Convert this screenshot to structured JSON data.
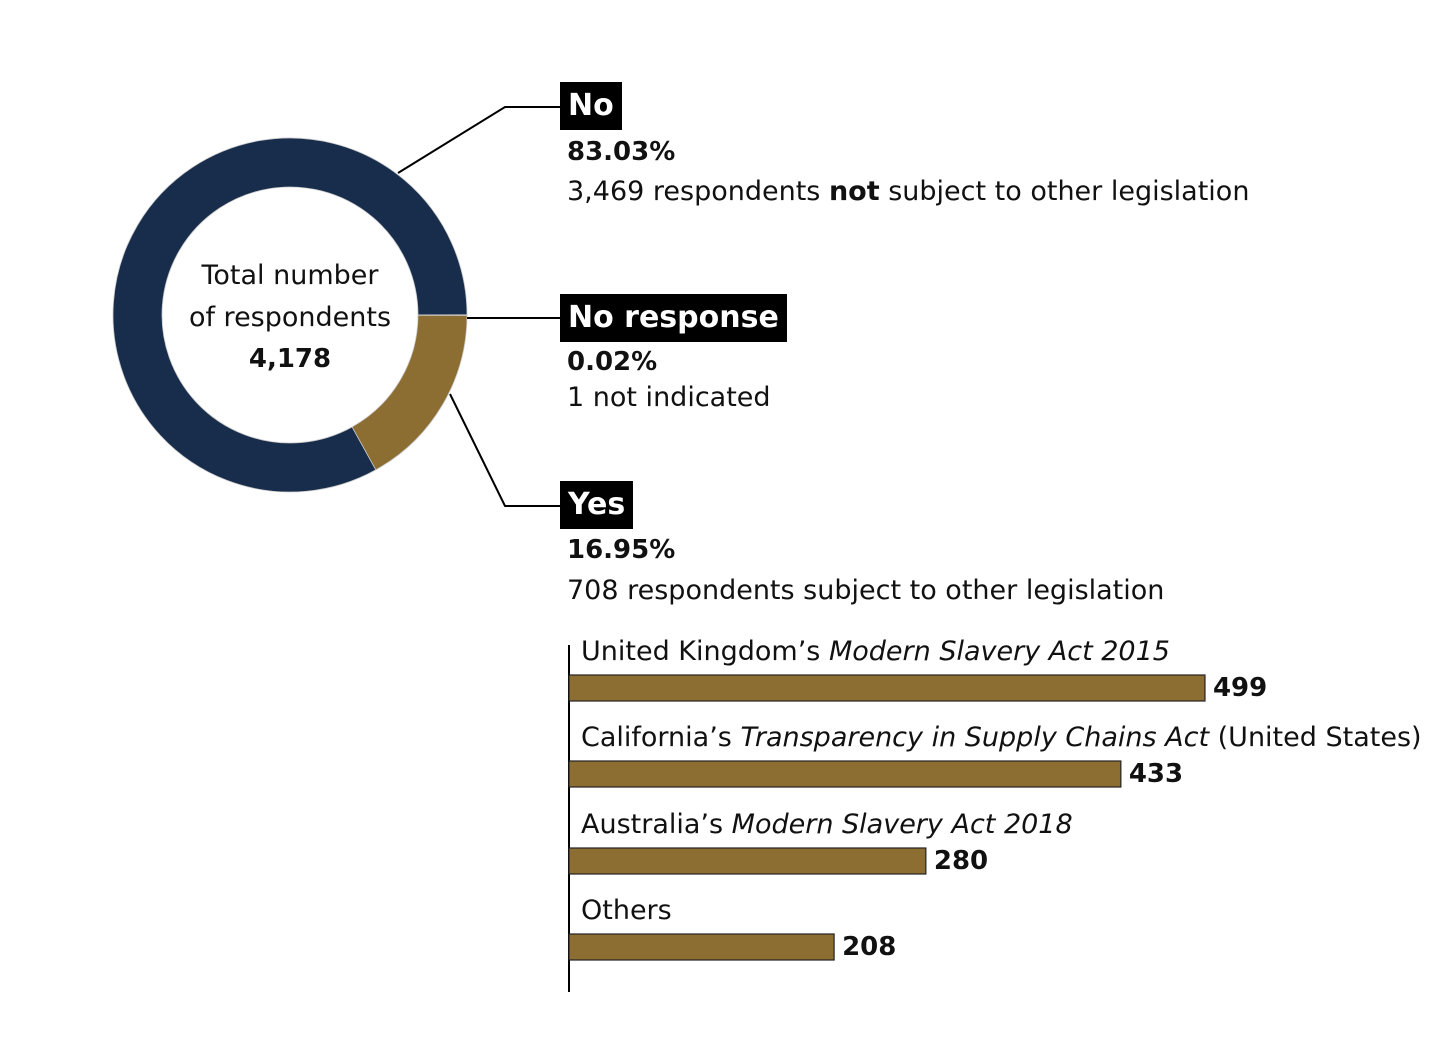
{
  "chart_data": [
    {
      "type": "pie",
      "variant": "donut",
      "center_label": {
        "line1": "Total number",
        "line2": "of respondents",
        "total": "4,178"
      },
      "slices": [
        {
          "label": "Yes",
          "percent": 16.95,
          "value": 708,
          "percent_text": "16.95%",
          "desc": "708 respondents subject to other legislation",
          "color": "#8c6d32"
        },
        {
          "label": "No",
          "percent": 83.03,
          "value": 3469,
          "percent_text": "83.03%",
          "desc_pre": "3,469 respondents ",
          "desc_bold": "not",
          "desc_post": " subject to other legislation",
          "color": "#172d4b"
        },
        {
          "label": "No response",
          "percent": 0.02,
          "value": 1,
          "percent_text": "0.02%",
          "desc": "1 not indicated",
          "color": "#a9b0b8"
        }
      ]
    },
    {
      "type": "bar",
      "orientation": "horizontal",
      "bar_color": "#8c6d32",
      "categories": [
        {
          "pre": "United Kingdom’s ",
          "italic": "Modern Slavery Act 2015",
          "post": ""
        },
        {
          "pre": "California’s ",
          "italic": "Transparency in Supply Chains Act",
          "post": " (United States)"
        },
        {
          "pre": "Australia’s ",
          "italic": "Modern Slavery Act 2018",
          "post": ""
        },
        {
          "pre": "Others",
          "italic": "",
          "post": ""
        }
      ],
      "values": [
        499,
        433,
        280,
        208
      ]
    }
  ]
}
